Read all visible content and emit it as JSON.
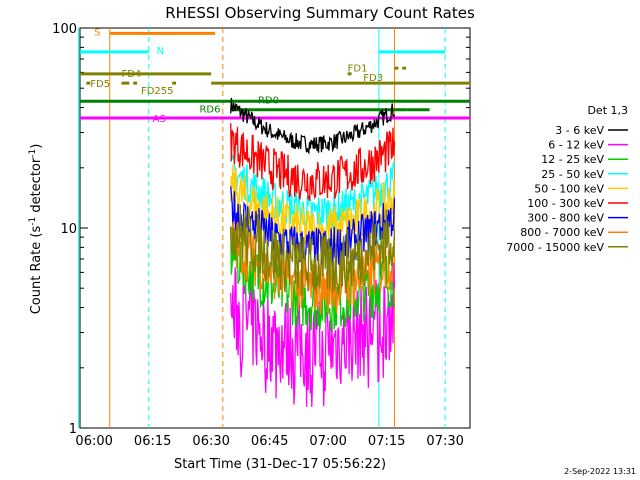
{
  "chart_data": {
    "type": "line",
    "title": "RHESSI Observing Summary Count Rates",
    "xlabel": "Start Time (31-Dec-17 05:56:22)",
    "ylabel_prefix": "Count Rate (s",
    "ylabel_sup": "-1",
    "ylabel_suffix": " detector",
    "ylabel_close": ")",
    "x_range_minutes": [
      "05:56:22",
      "07:36:22"
    ],
    "x_ticks": [
      "06:00",
      "06:15",
      "06:30",
      "06:45",
      "07:00",
      "07:15",
      "07:30"
    ],
    "y_scale": "log",
    "ylim": [
      1,
      100
    ],
    "y_ticks": [
      "1",
      "10",
      "100"
    ],
    "legend_title": "Det 1,3",
    "legend_placement": "right",
    "series": [
      {
        "name": "3 - 6 keV",
        "color": "#000000",
        "level_start": 36,
        "level_end": 34
      },
      {
        "name": "6 - 12 keV",
        "color": "#ff00ff",
        "level_start": 3.4,
        "level_end": 3.4
      },
      {
        "name": "12 - 25 keV",
        "color": "#00cc00",
        "level_start": 6.5,
        "level_end": 5.0
      },
      {
        "name": "25 - 50 keV",
        "color": "#00ffff",
        "level_start": 17,
        "level_end": 15
      },
      {
        "name": "50 - 100 keV",
        "color": "#ffcc00",
        "level_start": 14,
        "level_end": 12
      },
      {
        "name": "100 - 300 keV",
        "color": "#ff0000",
        "level_start": 24,
        "level_end": 22
      },
      {
        "name": "300 - 800 keV",
        "color": "#0000ff",
        "level_start": 11,
        "level_end": 10
      },
      {
        "name": "800 - 7000 keV",
        "color": "#ff8000",
        "level_start": 7.5,
        "level_end": 6.0
      },
      {
        "name": "7000 - 15000 keV",
        "color": "#808000",
        "level_start": 9,
        "level_end": 8
      }
    ],
    "flag_labels": [
      "S",
      "N",
      "FD1",
      "FD3",
      "FD4",
      "FD5",
      "FD255",
      "RD6",
      "RD0",
      "AS"
    ],
    "flag_colors": {
      "S": "#ff8000",
      "N": "#00ffff",
      "FD": "#808000",
      "RD": "#008000",
      "AS": "#ff00ff"
    },
    "grid": false
  },
  "footer": {
    "timestamp": "2-Sep-2022 13:31"
  }
}
